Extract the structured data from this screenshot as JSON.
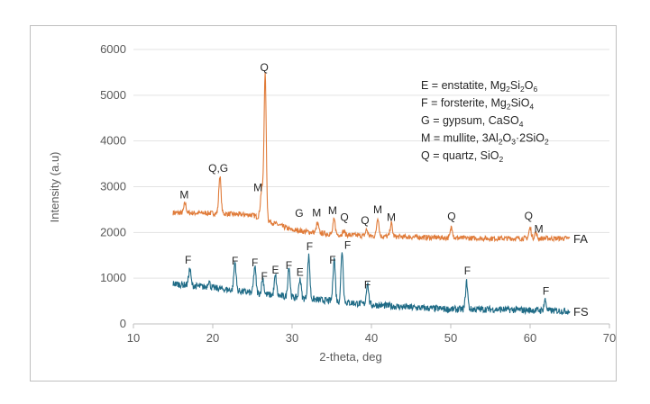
{
  "chart_data": {
    "type": "line",
    "title": "",
    "xlabel": "2-theta, deg",
    "ylabel": "Intensity (a.u)",
    "xlim": [
      10,
      70
    ],
    "ylim": [
      0,
      6000
    ],
    "x_ticks": [
      10,
      20,
      30,
      40,
      50,
      60,
      70
    ],
    "y_ticks": [
      0,
      1000,
      2000,
      3000,
      4000,
      5000,
      6000
    ],
    "grid": "horizontal",
    "series": [
      {
        "name": "FA",
        "color": "#e07b39",
        "baseline": [
          [
            15,
            2430
          ],
          [
            20,
            2420
          ],
          [
            25,
            2380
          ],
          [
            27,
            2250
          ],
          [
            30,
            2050
          ],
          [
            35,
            1960
          ],
          [
            40,
            1920
          ],
          [
            45,
            1900
          ],
          [
            50,
            1880
          ],
          [
            55,
            1870
          ],
          [
            60,
            1870
          ],
          [
            65,
            1870
          ]
        ],
        "peaks": [
          [
            16.5,
            2640
          ],
          [
            20.9,
            3230
          ],
          [
            26.0,
            2450
          ],
          [
            26.2,
            2900
          ],
          [
            26.6,
            5450
          ],
          [
            30.9,
            2050
          ],
          [
            33.2,
            2200
          ],
          [
            35.3,
            2280
          ],
          [
            36.5,
            2030
          ],
          [
            39.4,
            2060
          ],
          [
            40.8,
            2330
          ],
          [
            42.5,
            2200
          ],
          [
            50.1,
            2130
          ],
          [
            60.0,
            2100
          ],
          [
            60.7,
            2000
          ]
        ],
        "label_text": "FA"
      },
      {
        "name": "FS",
        "color": "#1f6b86",
        "baseline": [
          [
            15,
            880
          ],
          [
            20,
            790
          ],
          [
            25,
            680
          ],
          [
            30,
            580
          ],
          [
            35,
            500
          ],
          [
            40,
            420
          ],
          [
            45,
            360
          ],
          [
            50,
            320
          ],
          [
            55,
            320
          ],
          [
            60,
            300
          ],
          [
            65,
            280
          ]
        ],
        "peaks": [
          [
            17.1,
            1200
          ],
          [
            19.5,
            940
          ],
          [
            22.8,
            1350
          ],
          [
            25.3,
            1250
          ],
          [
            26.3,
            1000
          ],
          [
            27.9,
            1050
          ],
          [
            29.6,
            1250
          ],
          [
            31.0,
            1000
          ],
          [
            32.1,
            1480
          ],
          [
            35.3,
            1450
          ],
          [
            36.3,
            1600
          ],
          [
            39.5,
            900
          ],
          [
            52.0,
            920
          ],
          [
            61.9,
            520
          ]
        ],
        "label_text": "FS"
      }
    ],
    "peak_labels": [
      {
        "text": "M",
        "x": 16.4,
        "y": 2740
      },
      {
        "text": "Q,G",
        "x": 20.7,
        "y": 3320
      },
      {
        "text": "Q",
        "x": 26.5,
        "y": 5530
      },
      {
        "text": "M",
        "x": 25.7,
        "y": 2900
      },
      {
        "text": "G",
        "x": 30.9,
        "y": 2340
      },
      {
        "text": "M",
        "x": 33.1,
        "y": 2350
      },
      {
        "text": "M",
        "x": 35.1,
        "y": 2400
      },
      {
        "text": "Q",
        "x": 36.6,
        "y": 2250
      },
      {
        "text": "Q",
        "x": 39.2,
        "y": 2180
      },
      {
        "text": "M",
        "x": 40.8,
        "y": 2420
      },
      {
        "text": "M",
        "x": 42.5,
        "y": 2250
      },
      {
        "text": "Q",
        "x": 50.1,
        "y": 2270
      },
      {
        "text": "Q",
        "x": 59.8,
        "y": 2280
      },
      {
        "text": "M",
        "x": 61.1,
        "y": 2000
      },
      {
        "text": "F",
        "x": 16.9,
        "y": 1320
      },
      {
        "text": "F",
        "x": 22.8,
        "y": 1300
      },
      {
        "text": "F",
        "x": 25.3,
        "y": 1260
      },
      {
        "text": "F",
        "x": 26.5,
        "y": 960
      },
      {
        "text": "E",
        "x": 27.9,
        "y": 1100
      },
      {
        "text": "F",
        "x": 29.6,
        "y": 1200
      },
      {
        "text": "E",
        "x": 31.0,
        "y": 1050
      },
      {
        "text": "F",
        "x": 32.2,
        "y": 1610
      },
      {
        "text": "F",
        "x": 35.1,
        "y": 1320
      },
      {
        "text": "F",
        "x": 37.0,
        "y": 1640
      },
      {
        "text": "F",
        "x": 39.5,
        "y": 780
      },
      {
        "text": "F",
        "x": 52.1,
        "y": 1080
      },
      {
        "text": "F",
        "x": 62.0,
        "y": 640
      }
    ],
    "legend": [
      {
        "prefix": "E = enstatite, Mg",
        "parts": [
          [
            "Mg",
            ""
          ],
          [
            "2",
            "sub"
          ],
          [
            "Si",
            ""
          ],
          [
            "2",
            "sub"
          ],
          [
            "O",
            ""
          ],
          [
            "6",
            "sub"
          ]
        ],
        "full": "E = enstatite, Mg2Si2O6"
      },
      {
        "prefix": "F = forsterite, Mg",
        "parts": [
          [
            "Mg",
            ""
          ],
          [
            "2",
            "sub"
          ],
          [
            "SiO",
            ""
          ],
          [
            "4",
            "sub"
          ]
        ],
        "full": "F = forsterite, Mg2SiO4"
      },
      {
        "prefix": "G = gypsum, ",
        "parts": [
          [
            "CaSO",
            ""
          ],
          [
            "4",
            "sub"
          ]
        ],
        "full": "G = gypsum, CaSO4"
      },
      {
        "prefix": "M = mullite, ",
        "parts": [
          [
            "3Al",
            ""
          ],
          [
            "2",
            "sub"
          ],
          [
            "O",
            ""
          ],
          [
            "3",
            "sub"
          ],
          [
            "·2SiO",
            ""
          ],
          [
            "2",
            "sub"
          ]
        ],
        "full": "M = mullite, 3Al2O3·2SiO2"
      },
      {
        "prefix": "Q = quartz, ",
        "parts": [
          [
            "SiO",
            ""
          ],
          [
            "2",
            "sub"
          ]
        ],
        "full": "Q = quartz, SiO2"
      }
    ],
    "legend_placement": "top-right"
  }
}
